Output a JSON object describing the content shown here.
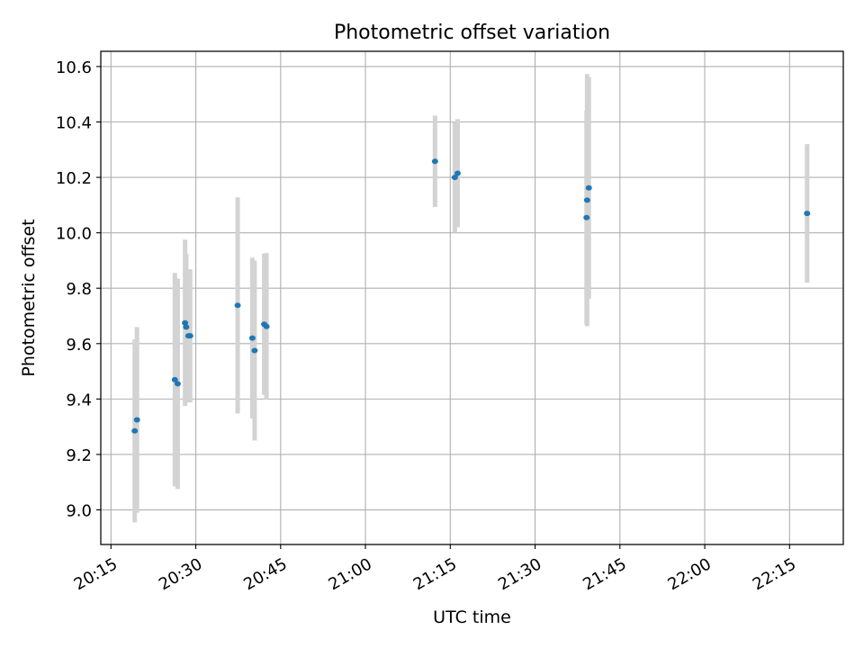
{
  "chart_data": {
    "type": "scatter",
    "title": "Photometric offset variation",
    "xlabel": "UTC time",
    "ylabel": "Photometric offset",
    "grid": true,
    "x_ticks": [
      "20:15",
      "20:30",
      "20:45",
      "21:00",
      "21:15",
      "21:30",
      "21:45",
      "22:00",
      "22:15"
    ],
    "xlim": [
      "20:13.2",
      "22:24.5"
    ],
    "y_ticks": [
      "9.0",
      "9.2",
      "9.4",
      "9.6",
      "9.8",
      "10.0",
      "10.2",
      "10.4",
      "10.6"
    ],
    "ylim": [
      8.875,
      10.655
    ],
    "colors": {
      "points": "#1f77b4",
      "errorbars": "#d3d3d3",
      "grid": "#b0b0b0"
    },
    "points": [
      {
        "x": "20:19.2",
        "y": 9.285,
        "yerr": 0.33
      },
      {
        "x": "20:19.6",
        "y": 9.325,
        "yerr": 0.335
      },
      {
        "x": "20:26.3",
        "y": 9.47,
        "yerr": 0.385
      },
      {
        "x": "20:26.8",
        "y": 9.455,
        "yerr": 0.38
      },
      {
        "x": "20:28.1",
        "y": 9.675,
        "yerr": 0.3
      },
      {
        "x": "20:28.3",
        "y": 9.66,
        "yerr": 0.265
      },
      {
        "x": "20:28.7",
        "y": 9.628,
        "yerr": 0.24
      },
      {
        "x": "20:29.0",
        "y": 9.628,
        "yerr": 0.24
      },
      {
        "x": "20:37.4",
        "y": 9.738,
        "yerr": 0.39
      },
      {
        "x": "20:40.0",
        "y": 9.62,
        "yerr": 0.29
      },
      {
        "x": "20:40.4",
        "y": 9.575,
        "yerr": 0.325
      },
      {
        "x": "20:42.1",
        "y": 9.67,
        "yerr": 0.255
      },
      {
        "x": "20:42.5",
        "y": 9.662,
        "yerr": 0.265
      },
      {
        "x": "21:12.3",
        "y": 10.258,
        "yerr": 0.165
      },
      {
        "x": "21:15.8",
        "y": 10.2,
        "yerr": 0.2
      },
      {
        "x": "21:16.3",
        "y": 10.215,
        "yerr": 0.195
      },
      {
        "x": "21:39.1",
        "y": 10.055,
        "yerr": 0.385
      },
      {
        "x": "21:39.2",
        "y": 10.118,
        "yerr": 0.455
      },
      {
        "x": "21:39.5",
        "y": 10.162,
        "yerr": 0.4
      },
      {
        "x": "22:18.1",
        "y": 10.07,
        "yerr": 0.25
      }
    ]
  }
}
